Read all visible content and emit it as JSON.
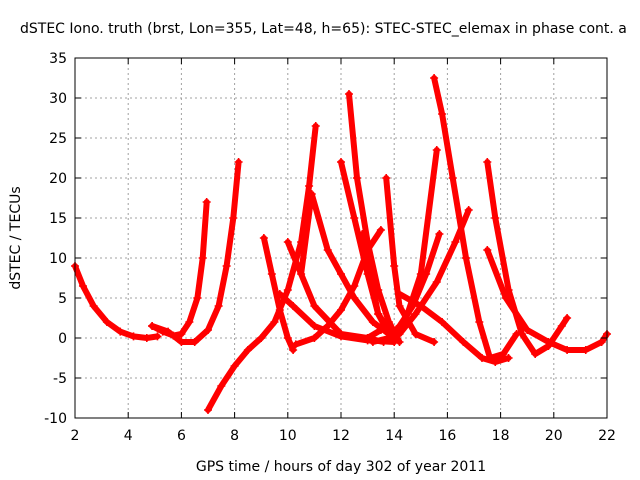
{
  "chart_data": {
    "type": "scatter",
    "title": "dSTEC Iono. truth (brst, Lon=355, Lat=48, h=65): STEC-STEC_elemax in phase cont. a",
    "xlabel": "GPS time / hours of day 302 of year 2011",
    "ylabel": "dSTEC  / TECUs",
    "xlim": [
      2,
      22
    ],
    "ylim": [
      -10,
      35
    ],
    "xticks": [
      2,
      4,
      6,
      8,
      10,
      12,
      14,
      16,
      18,
      20,
      22
    ],
    "yticks": [
      -10,
      -5,
      0,
      5,
      10,
      15,
      20,
      25,
      30,
      35
    ],
    "grid": true,
    "color": "#ff0000",
    "marker": "plus",
    "series": [
      {
        "x": [
          2.0,
          2.3,
          2.7,
          3.2,
          3.7,
          4.2,
          4.7,
          5.1
        ],
        "y": [
          9.0,
          6.5,
          4.0,
          2.0,
          0.8,
          0.2,
          0.0,
          0.2
        ]
      },
      {
        "x": [
          4.9,
          5.3,
          5.7,
          6.0,
          6.3,
          6.6,
          6.8,
          6.95
        ],
        "y": [
          1.5,
          0.8,
          0.3,
          0.5,
          2.0,
          5.0,
          10.0,
          17.0
        ]
      },
      {
        "x": [
          4.9,
          5.5,
          6.0,
          6.5,
          7.0,
          7.4,
          7.7,
          7.95,
          8.15
        ],
        "y": [
          1.5,
          0.8,
          -0.5,
          -0.5,
          1.0,
          4.0,
          9.0,
          15.0,
          22.0
        ]
      },
      {
        "x": [
          7.0,
          7.5,
          8.0,
          8.5,
          9.0,
          9.5,
          10.0,
          10.5,
          10.8,
          11.05
        ],
        "y": [
          -9.0,
          -6.0,
          -3.5,
          -1.5,
          0.0,
          2.0,
          6.0,
          12.0,
          19.0,
          26.5
        ]
      },
      {
        "x": [
          9.1,
          9.4,
          9.7,
          10.0,
          10.2
        ],
        "y": [
          12.5,
          8.0,
          3.5,
          0.0,
          -1.5
        ]
      },
      {
        "x": [
          9.7,
          10.2,
          11.0,
          12.0,
          13.0,
          14.0
        ],
        "y": [
          5.5,
          4.0,
          1.5,
          0.2,
          -0.3,
          -0.5
        ]
      },
      {
        "x": [
          10.0,
          11.0,
          12.0,
          13.0,
          13.5
        ],
        "y": [
          12.0,
          4.0,
          0.5,
          0.0,
          1.0
        ]
      },
      {
        "x": [
          10.3,
          11.0,
          11.5,
          12.0,
          12.5,
          13.0,
          13.5
        ],
        "y": [
          -0.8,
          0.0,
          1.5,
          3.5,
          6.5,
          11.0,
          13.5
        ]
      },
      {
        "x": [
          10.5,
          10.9,
          11.5,
          12.0,
          12.5,
          13.2,
          13.8
        ],
        "y": [
          8.0,
          18.0,
          11.0,
          8.0,
          5.0,
          2.0,
          0.5
        ]
      },
      {
        "x": [
          12.0,
          12.5,
          13.0,
          13.4,
          13.8
        ],
        "y": [
          22.0,
          15.0,
          8.0,
          3.0,
          0.5
        ]
      },
      {
        "x": [
          12.3,
          12.6,
          13.0,
          13.4,
          13.8,
          14.2
        ],
        "y": [
          30.5,
          20.0,
          12.0,
          6.0,
          2.0,
          -0.5
        ]
      },
      {
        "x": [
          12.8,
          13.4,
          14.0,
          14.5,
          15.0,
          15.6
        ],
        "y": [
          13.0,
          3.0,
          0.0,
          3.0,
          8.0,
          23.5
        ]
      },
      {
        "x": [
          13.7,
          14.0,
          14.2,
          14.8,
          15.5
        ],
        "y": [
          20.0,
          9.0,
          4.0,
          0.5,
          -0.5
        ]
      },
      {
        "x": [
          13.0,
          13.6,
          14.2,
          14.8,
          15.6,
          16.3,
          16.8
        ],
        "y": [
          0.0,
          -0.5,
          0.5,
          3.0,
          7.0,
          12.0,
          16.0
        ]
      },
      {
        "x": [
          13.2,
          13.8,
          14.2,
          14.7,
          15.2,
          15.7
        ],
        "y": [
          -0.5,
          0.0,
          1.5,
          4.0,
          8.0,
          13.0
        ]
      },
      {
        "x": [
          15.5,
          15.8,
          16.2,
          16.7,
          17.2,
          17.6,
          18.1,
          18.6
        ],
        "y": [
          32.5,
          28.0,
          20.0,
          10.0,
          2.0,
          -2.5,
          -2.0,
          0.5
        ]
      },
      {
        "x": [
          14.2,
          15.0,
          15.8,
          16.6,
          17.3,
          17.8,
          18.3
        ],
        "y": [
          5.5,
          4.0,
          2.0,
          -0.5,
          -2.5,
          -3.0,
          -2.5
        ]
      },
      {
        "x": [
          17.5,
          17.8,
          18.3,
          18.8,
          19.3,
          19.8,
          20.3,
          20.5
        ],
        "y": [
          22.0,
          15.0,
          6.0,
          0.5,
          -2.0,
          -1.0,
          1.5,
          2.5
        ]
      },
      {
        "x": [
          17.5,
          18.2,
          19.0,
          19.8,
          20.5,
          21.2,
          21.8,
          22.0
        ],
        "y": [
          11.0,
          5.0,
          1.0,
          -0.5,
          -1.5,
          -1.5,
          -0.5,
          0.5
        ]
      }
    ]
  }
}
